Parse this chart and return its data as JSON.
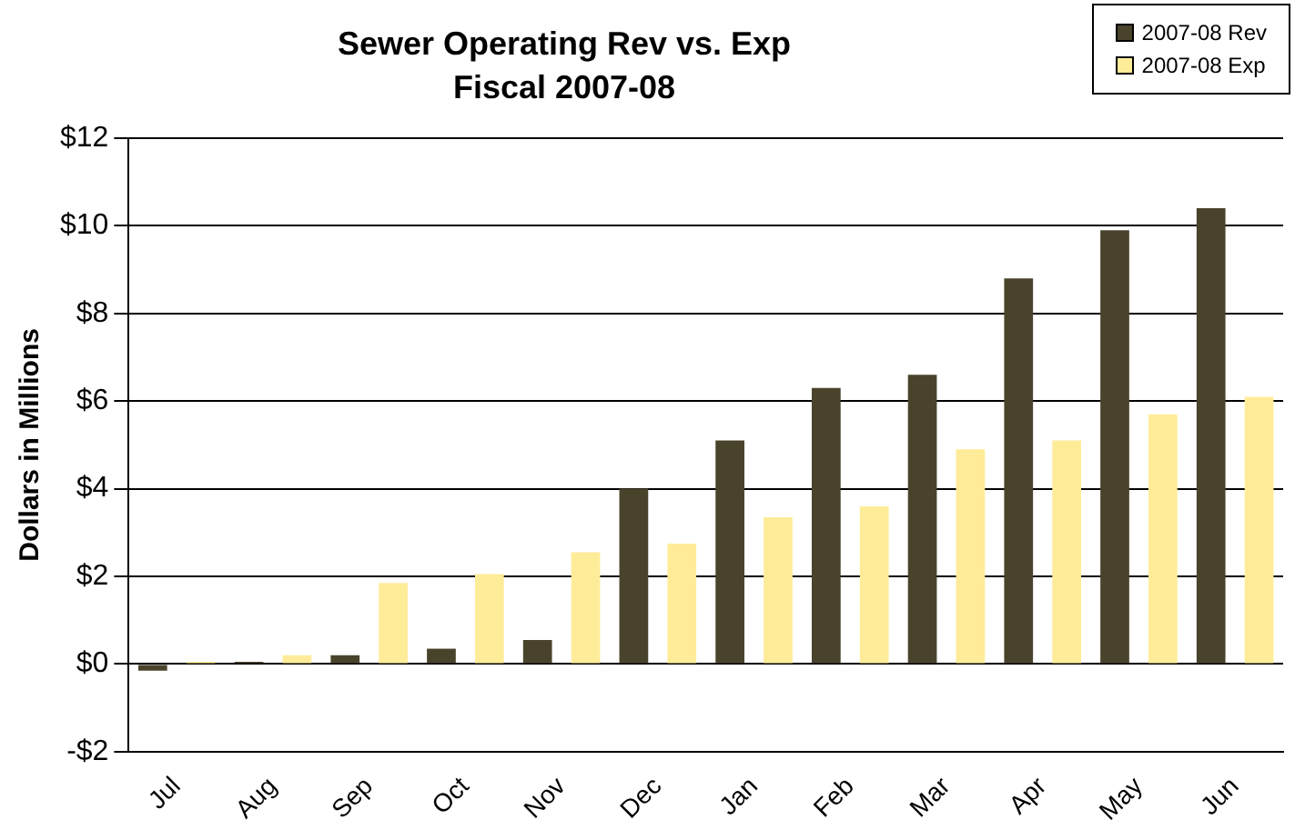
{
  "chart_data": {
    "type": "bar",
    "title": "Sewer Operating Rev vs. Exp\nFiscal 2007-08",
    "ylabel": "Dollars in Millions",
    "categories": [
      "Jul",
      "Aug",
      "Sep",
      "Oct",
      "Nov",
      "Dec",
      "Jan",
      "Feb",
      "Mar",
      "Apr",
      "May",
      "Jun"
    ],
    "series": [
      {
        "name": "2007-08 Rev",
        "color": "#4a432c",
        "values": [
          -0.15,
          0.05,
          0.2,
          0.35,
          0.55,
          4.0,
          5.1,
          6.3,
          6.6,
          8.8,
          9.9,
          10.4
        ]
      },
      {
        "name": "2007-08 Exp",
        "color": "#ffec99",
        "values": [
          0.05,
          0.2,
          1.85,
          2.05,
          2.55,
          2.75,
          3.35,
          3.6,
          4.9,
          5.1,
          5.7,
          6.1
        ]
      }
    ],
    "ylim": [
      -2,
      12
    ],
    "yticks": [
      {
        "value": -2,
        "label": "-$2"
      },
      {
        "value": 0,
        "label": "$0"
      },
      {
        "value": 2,
        "label": "$2"
      },
      {
        "value": 4,
        "label": "$4"
      },
      {
        "value": 6,
        "label": "$6"
      },
      {
        "value": 8,
        "label": "$8"
      },
      {
        "value": 10,
        "label": "$10"
      },
      {
        "value": 12,
        "label": "$12"
      }
    ],
    "grid": "y",
    "legend": "top right"
  }
}
